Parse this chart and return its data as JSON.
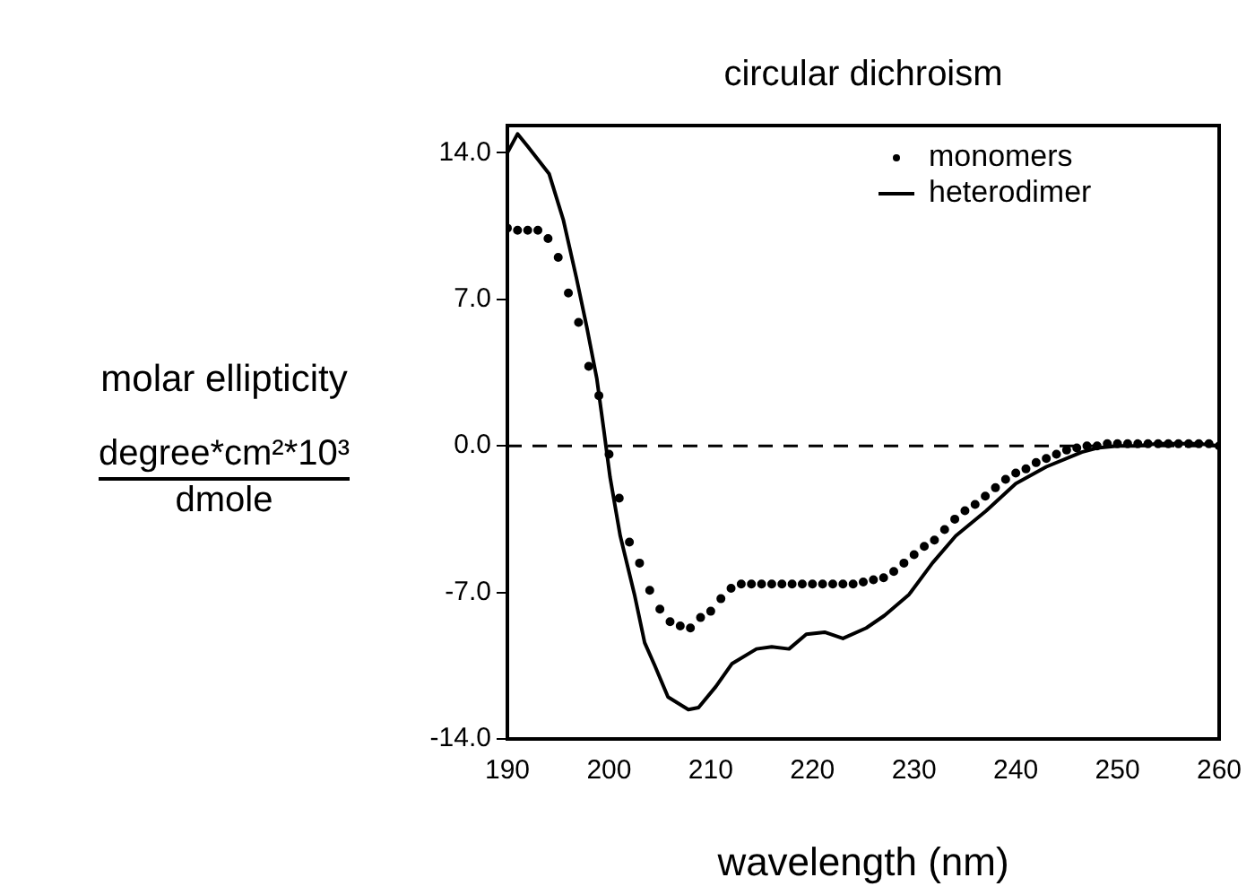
{
  "chart_data": {
    "type": "line",
    "title": "circular dichroism",
    "xlabel": "wavelength (nm)",
    "ylabel": "molar ellipticity",
    "annotations": [
      "degree*cm²*10³",
      "dmole"
    ],
    "xlim": [
      190,
      260
    ],
    "xticks": [
      190,
      200,
      210,
      220,
      230,
      240,
      250,
      260
    ],
    "ylim": [
      -14,
      15.3
    ],
    "yticks": [
      {
        "value": 14,
        "label": "14.0"
      },
      {
        "value": 7,
        "label": "7.0"
      },
      {
        "value": 0,
        "label": "0.0"
      },
      {
        "value": -7,
        "label": "-7.0"
      },
      {
        "value": -14,
        "label": "-14.0"
      }
    ],
    "grid": false,
    "legend": "top right",
    "ref_lines": [
      {
        "axis": "y",
        "value": 0,
        "line_style": "dashed",
        "color": "#000000"
      }
    ],
    "series": [
      {
        "name": "monomers",
        "type": "scatter",
        "marker": "circle",
        "color": "#000000",
        "x": [
          190,
          191,
          192,
          193,
          194,
          195,
          196,
          197,
          198,
          199,
          200,
          201,
          202,
          203,
          204,
          205,
          206,
          207,
          208,
          209,
          210,
          211,
          212,
          213,
          214,
          215,
          216,
          217,
          218,
          219,
          220,
          221,
          222,
          223,
          224,
          225,
          226,
          227,
          228,
          229,
          230,
          231,
          232,
          233,
          234,
          235,
          236,
          237,
          238,
          239,
          240,
          241,
          242,
          243,
          244,
          245,
          246,
          247,
          248,
          249,
          250,
          251,
          252,
          253,
          254,
          255,
          256,
          257,
          258,
          259,
          260
        ],
        "values": [
          10.4,
          10.3,
          10.3,
          10.3,
          9.9,
          9.0,
          7.3,
          5.9,
          3.8,
          2.4,
          -0.4,
          -2.5,
          -4.6,
          -5.6,
          -6.9,
          -7.8,
          -8.4,
          -8.6,
          -8.7,
          -8.2,
          -7.9,
          -7.3,
          -6.8,
          -6.6,
          -6.6,
          -6.6,
          -6.6,
          -6.6,
          -6.6,
          -6.6,
          -6.6,
          -6.6,
          -6.6,
          -6.6,
          -6.6,
          -6.5,
          -6.4,
          -6.3,
          -6.0,
          -5.6,
          -5.2,
          -4.8,
          -4.5,
          -4.0,
          -3.5,
          -3.1,
          -2.8,
          -2.4,
          -2.0,
          -1.6,
          -1.3,
          -1.1,
          -0.8,
          -0.6,
          -0.4,
          -0.2,
          -0.1,
          0.0,
          0.0,
          0.1,
          0.1,
          0.1,
          0.1,
          0.1,
          0.1,
          0.1,
          0.1,
          0.1,
          0.1,
          0.1,
          0.0
        ]
      },
      {
        "name": "heterodimer",
        "type": "line",
        "marker": "none",
        "line_style": "solid",
        "color": "#000000",
        "x": [
          190,
          191,
          192,
          194.1,
          195.5,
          196.8,
          197.8,
          198.8,
          199.5,
          200.1,
          201.1,
          202.5,
          203.5,
          204.5,
          205.8,
          207.8,
          208.8,
          210.5,
          212.1,
          214.5,
          216,
          217.7,
          219.4,
          221.2,
          223,
          225.3,
          227.1,
          229.5,
          231.8,
          234.1,
          237.1,
          240,
          243,
          246.5,
          248,
          250,
          252,
          254,
          256,
          258,
          260
        ],
        "values": [
          14.0,
          14.9,
          14.3,
          13.0,
          10.8,
          8.0,
          5.7,
          3.2,
          0.7,
          -1.5,
          -4.3,
          -7.1,
          -9.4,
          -10.5,
          -12.0,
          -12.6,
          -12.5,
          -11.5,
          -10.4,
          -9.7,
          -9.6,
          -9.7,
          -9.0,
          -8.9,
          -9.2,
          -8.7,
          -8.1,
          -7.1,
          -5.6,
          -4.3,
          -3.1,
          -1.8,
          -1.0,
          -0.3,
          -0.1,
          0.0,
          0.0,
          0.1,
          0.1,
          0.1,
          0.0
        ]
      }
    ]
  }
}
